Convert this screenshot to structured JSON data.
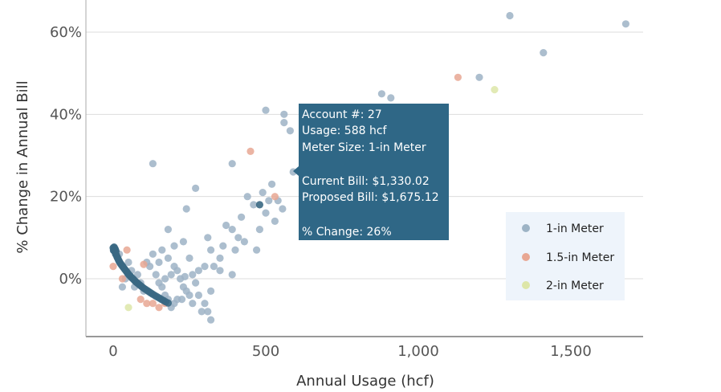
{
  "chart_data": {
    "type": "scatter",
    "xlabel": "Annual Usage (hcf)",
    "ylabel": "% Change in Annual Bill",
    "xlim": [
      -90,
      1740
    ],
    "ylim": [
      -13,
      67
    ],
    "x_ticks": [
      0,
      500,
      1000,
      1500
    ],
    "x_tick_labels": [
      "0",
      "500",
      "1,000",
      "1,500"
    ],
    "y_ticks": [
      0,
      20,
      40,
      60
    ],
    "y_tick_labels": [
      "0%",
      "20%",
      "40%",
      "60%"
    ],
    "grid": "horizontal",
    "legend_position": "right",
    "series": [
      {
        "name": "1-in Meter",
        "color": "#9db3c5",
        "points": [
          [
            130,
            28
          ],
          [
            270,
            22
          ],
          [
            240,
            17
          ],
          [
            180,
            12
          ],
          [
            200,
            8
          ],
          [
            230,
            9
          ],
          [
            250,
            5
          ],
          [
            310,
            10
          ],
          [
            320,
            7
          ],
          [
            350,
            2
          ],
          [
            370,
            13
          ],
          [
            390,
            12
          ],
          [
            410,
            10
          ],
          [
            430,
            9
          ],
          [
            400,
            7
          ],
          [
            390,
            1
          ],
          [
            420,
            15
          ],
          [
            440,
            20
          ],
          [
            460,
            18
          ],
          [
            470,
            7
          ],
          [
            480,
            12
          ],
          [
            500,
            16
          ],
          [
            510,
            19
          ],
          [
            520,
            23
          ],
          [
            530,
            14
          ],
          [
            555,
            17
          ],
          [
            540,
            19
          ],
          [
            490,
            21
          ],
          [
            500,
            41
          ],
          [
            560,
            40
          ],
          [
            560,
            38
          ],
          [
            580,
            36
          ],
          [
            590,
            26
          ],
          [
            390,
            28
          ],
          [
            880,
            45
          ],
          [
            910,
            44
          ],
          [
            1200,
            49
          ],
          [
            1410,
            55
          ],
          [
            1300,
            64
          ],
          [
            1680,
            62
          ],
          [
            320,
            -10
          ],
          [
            310,
            -8
          ],
          [
            290,
            -8
          ],
          [
            260,
            -6
          ],
          [
            250,
            -4
          ],
          [
            270,
            -1
          ],
          [
            280,
            2
          ],
          [
            300,
            3
          ],
          [
            330,
            3
          ],
          [
            350,
            5
          ],
          [
            360,
            8
          ],
          [
            220,
            0
          ],
          [
            230,
            -2
          ],
          [
            240,
            -3
          ],
          [
            210,
            -5
          ],
          [
            200,
            -6
          ],
          [
            190,
            -7
          ],
          [
            180,
            -5
          ],
          [
            170,
            -4
          ],
          [
            160,
            -2
          ],
          [
            150,
            -1
          ],
          [
            140,
            1
          ],
          [
            120,
            3
          ],
          [
            110,
            4
          ],
          [
            130,
            6
          ],
          [
            150,
            4
          ],
          [
            160,
            7
          ],
          [
            180,
            5
          ],
          [
            200,
            3
          ],
          [
            190,
            1
          ],
          [
            170,
            0
          ],
          [
            100,
            -3
          ],
          [
            90,
            -1
          ],
          [
            80,
            1
          ],
          [
            70,
            -2
          ],
          [
            60,
            2
          ],
          [
            30,
            -2
          ],
          [
            50,
            4
          ],
          [
            20,
            6
          ],
          [
            40,
            0
          ],
          [
            210,
            2
          ],
          [
            235,
            0.5
          ],
          [
            260,
            1
          ],
          [
            280,
            -4
          ],
          [
            300,
            -6
          ],
          [
            320,
            -3
          ],
          [
            225,
            -5
          ]
        ]
      },
      {
        "name": "1.5-in Meter",
        "color": "#e8a793",
        "points": [
          [
            450,
            31
          ],
          [
            530,
            20
          ],
          [
            1130,
            49
          ],
          [
            0,
            3
          ],
          [
            30,
            0
          ],
          [
            45,
            7
          ],
          [
            100,
            3.5
          ],
          [
            90,
            -5
          ],
          [
            110,
            -6
          ],
          [
            130,
            -6
          ],
          [
            150,
            -7
          ],
          [
            170,
            -6
          ]
        ]
      },
      {
        "name": "2-in Meter",
        "color": "#dde6a8",
        "points": [
          [
            1250,
            46
          ],
          [
            50,
            -7
          ]
        ]
      },
      {
        "name": "",
        "color": "#3a6883",
        "points": [
          [
            0,
            7.5
          ],
          [
            2,
            7.2
          ],
          [
            4,
            6.8
          ],
          [
            6,
            6.5
          ],
          [
            8,
            6
          ],
          [
            10,
            5.8
          ],
          [
            12,
            5.4
          ],
          [
            14,
            5.1
          ],
          [
            16,
            4.8
          ],
          [
            18,
            4.5
          ],
          [
            20,
            4.2
          ],
          [
            22,
            3.9
          ],
          [
            25,
            3.6
          ],
          [
            28,
            3.3
          ],
          [
            30,
            3.1
          ],
          [
            33,
            2.8
          ],
          [
            36,
            2.5
          ],
          [
            39,
            2.2
          ],
          [
            42,
            1.9
          ],
          [
            45,
            1.6
          ],
          [
            48,
            1.3
          ],
          [
            51,
            1.0
          ],
          [
            55,
            0.7
          ],
          [
            59,
            0.4
          ],
          [
            63,
            0.1
          ],
          [
            67,
            -0.2
          ],
          [
            71,
            -0.5
          ],
          [
            75,
            -0.8
          ],
          [
            80,
            -1.1
          ],
          [
            85,
            -1.4
          ],
          [
            90,
            -1.7
          ],
          [
            95,
            -2.0
          ],
          [
            100,
            -2.3
          ],
          [
            106,
            -2.6
          ],
          [
            112,
            -2.9
          ],
          [
            118,
            -3.2
          ],
          [
            124,
            -3.5
          ],
          [
            130,
            -3.8
          ],
          [
            137,
            -4.1
          ],
          [
            144,
            -4.4
          ],
          [
            151,
            -4.7
          ],
          [
            158,
            -5.0
          ],
          [
            165,
            -5.3
          ],
          [
            172,
            -5.6
          ],
          [
            180,
            -5.9
          ],
          [
            3,
            7.7
          ],
          [
            5,
            7.4
          ],
          [
            1,
            6.9
          ],
          [
            7,
            7.1
          ],
          [
            9,
            6.7
          ],
          [
            480,
            18
          ]
        ]
      }
    ]
  },
  "legend": [
    {
      "label": "1-in Meter",
      "color": "#9db3c5"
    },
    {
      "label": "1.5-in Meter",
      "color": "#e8a793"
    },
    {
      "label": "2-in Meter",
      "color": "#dde6a8"
    }
  ],
  "tooltip": {
    "account": "Account #: 27",
    "usage": "Usage: 588 hcf",
    "meter_size": "Meter Size: 1-in Meter",
    "current_bill": "Current Bill: $1,330.02",
    "proposed_bill": "Proposed Bill: $1,675.12",
    "pct_change": "% Change: 26%",
    "point_x": 588,
    "point_y": 26,
    "background": "#2f6786"
  }
}
